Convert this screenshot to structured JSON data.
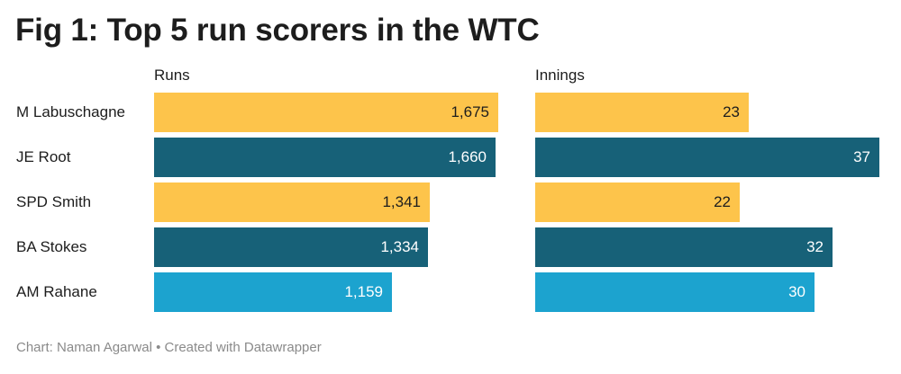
{
  "title": "Fig 1: Top 5 run scorers in the WTC",
  "footer": "Chart: Naman Agarwal • Created with Datawrapper",
  "colors": {
    "yellow": "#fdc44b",
    "dark_teal": "#176178",
    "light_blue": "#1ca3cf",
    "text_dark": "#1d1d1d",
    "text_light": "#ffffff"
  },
  "chart_data": {
    "type": "bar",
    "orientation": "horizontal",
    "categories": [
      "M Labuschagne",
      "JE Root",
      "SPD Smith",
      "BA Stokes",
      "AM Rahane"
    ],
    "series": [
      {
        "name": "Runs",
        "values": [
          1675,
          1660,
          1341,
          1334,
          1159
        ],
        "labels": [
          "1,675",
          "1,660",
          "1,341",
          "1,334",
          "1,159"
        ]
      },
      {
        "name": "Innings",
        "values": [
          23,
          37,
          22,
          32,
          30
        ],
        "labels": [
          "23",
          "37",
          "22",
          "32",
          "30"
        ]
      }
    ],
    "bar_colors": [
      "#fdc44b",
      "#176178",
      "#fdc44b",
      "#176178",
      "#1ca3cf"
    ],
    "value_label_colors": [
      "#1d1d1d",
      "#ffffff",
      "#1d1d1d",
      "#ffffff",
      "#ffffff"
    ],
    "xlim_runs": [
      0,
      1675
    ],
    "xlim_innings": [
      0,
      37
    ]
  }
}
